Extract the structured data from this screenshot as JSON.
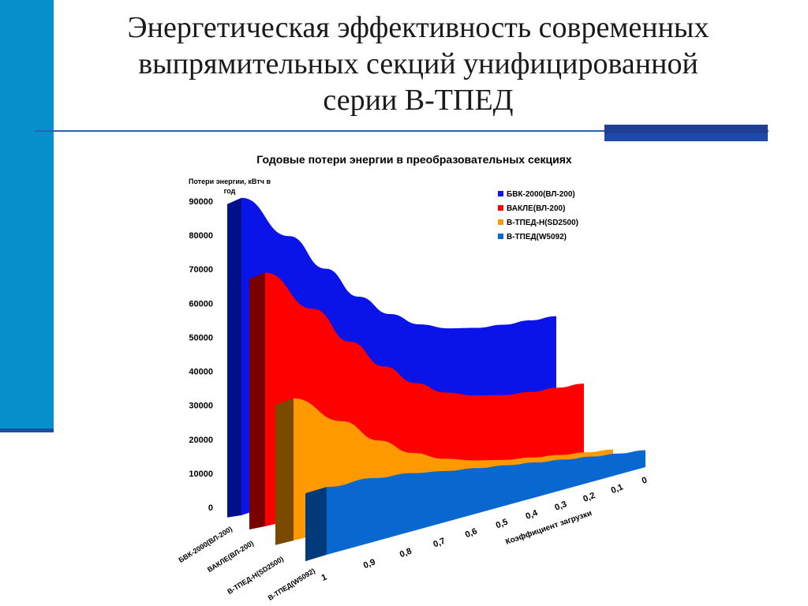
{
  "slide": {
    "title_lines": [
      "Энергетическая эффективность современных",
      "выпрямительных секций унифицированной",
      "серии В-ТПЕД"
    ]
  },
  "colors": {
    "accent_bar": "#0590c9",
    "rule": "#2a62b8",
    "block": "#1f3f93"
  },
  "chart_data": {
    "type": "area",
    "title": "Годовые потери энергии в преобразовательных секциях",
    "ylabel": "Потери энергии, кВтч в год",
    "xlabel": "Коэффициент загрузки",
    "ylim": [
      0,
      90000
    ],
    "yticks": [
      0,
      10000,
      20000,
      30000,
      40000,
      50000,
      60000,
      70000,
      80000,
      90000
    ],
    "x": [
      "1",
      "0,9",
      "0,8",
      "0,7",
      "0,6",
      "0,5",
      "0,4",
      "0,3",
      "0,2",
      "0,1",
      "0"
    ],
    "legend_position": "top-right",
    "series": [
      {
        "name": "БВК-2000(ВЛ-200)",
        "color": "#0a14e8",
        "side_color": "#000f8a",
        "values": [
          91000,
          78000,
          67000,
          57000,
          50000,
          45000,
          42000,
          40500,
          40000,
          40000,
          40000
        ]
      },
      {
        "name": "ВАКЛЕ(ВЛ-200)",
        "color": "#ff0000",
        "side_color": "#7a0000",
        "values": [
          69000,
          58000,
          48000,
          40000,
          34000,
          30000,
          28000,
          27000,
          27000,
          27500,
          28000
        ]
      },
      {
        "name": "В-ТПЕД-Н(SD2500)",
        "color": "#ff9900",
        "side_color": "#7a4a00",
        "values": [
          32000,
          25000,
          19000,
          14500,
          11500,
          9500,
          8000,
          7000,
          6000,
          5000,
          4000
        ]
      },
      {
        "name": "В-ТПЕД(W5092)",
        "color": "#0868d0",
        "side_color": "#003a7a",
        "values": [
          6000,
          5800,
          5500,
          5000,
          4600,
          4200,
          3800,
          3400,
          3000,
          2600,
          2200
        ]
      }
    ]
  }
}
